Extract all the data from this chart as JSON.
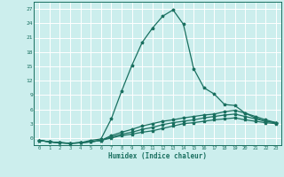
{
  "title": "",
  "xlabel": "Humidex (Indice chaleur)",
  "background_color": "#cceeed",
  "grid_color": "#ffffff",
  "line_color": "#1a7060",
  "x_values": [
    0,
    1,
    2,
    3,
    4,
    5,
    6,
    7,
    8,
    9,
    10,
    11,
    12,
    13,
    14,
    15,
    16,
    17,
    18,
    19,
    20,
    21,
    22,
    23
  ],
  "series": [
    [
      -0.5,
      -0.8,
      -1.0,
      -1.1,
      -1.0,
      -0.5,
      -0.2,
      4.0,
      9.8,
      15.2,
      20.0,
      23.0,
      25.5,
      26.8,
      23.8,
      14.5,
      10.5,
      9.2,
      7.0,
      6.8,
      5.2,
      4.2,
      3.5,
      3.2
    ],
    [
      -0.5,
      -0.8,
      -1.0,
      -1.1,
      -1.0,
      -0.8,
      -0.5,
      0.5,
      1.2,
      1.8,
      2.5,
      3.0,
      3.5,
      3.8,
      4.2,
      4.5,
      4.8,
      5.0,
      5.5,
      5.8,
      5.2,
      4.5,
      3.8,
      3.2
    ],
    [
      -0.5,
      -0.8,
      -1.0,
      -1.1,
      -1.0,
      -0.8,
      -0.5,
      0.2,
      0.8,
      1.2,
      1.8,
      2.2,
      2.8,
      3.2,
      3.5,
      3.8,
      4.2,
      4.5,
      4.8,
      5.0,
      4.5,
      4.0,
      3.5,
      3.2
    ],
    [
      -0.5,
      -0.8,
      -1.0,
      -1.1,
      -1.0,
      -0.8,
      -0.5,
      0.0,
      0.5,
      0.8,
      1.2,
      1.5,
      2.0,
      2.5,
      3.0,
      3.2,
      3.5,
      3.8,
      4.0,
      4.2,
      3.8,
      3.5,
      3.2,
      3.0
    ]
  ],
  "yticks": [
    0,
    3,
    6,
    9,
    12,
    15,
    18,
    21,
    24,
    27
  ],
  "ylim": [
    -1.5,
    28.5
  ],
  "xlim": [
    -0.5,
    23.5
  ],
  "xtick_labels": [
    "0",
    "1",
    "2",
    "3",
    "4",
    "5",
    "6",
    "7",
    "8",
    "9",
    "10",
    "11",
    "12",
    "13",
    "14",
    "15",
    "16",
    "17",
    "18",
    "19",
    "20",
    "21",
    "22",
    "23"
  ]
}
